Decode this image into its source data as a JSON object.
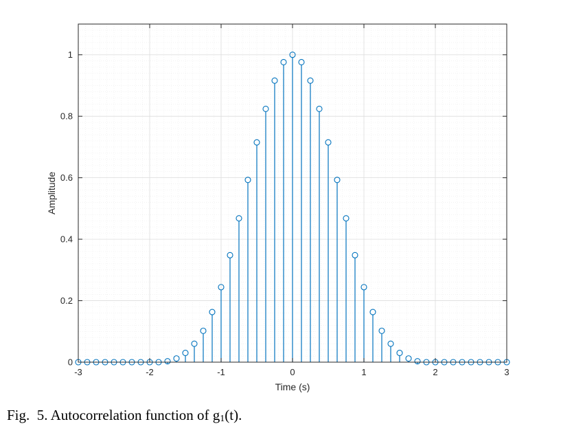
{
  "chart_data": {
    "type": "stem",
    "title": "",
    "xlabel": "Time (s)",
    "ylabel": "Amplitude",
    "xlim": [
      -3,
      3
    ],
    "ylim": [
      0,
      1.1
    ],
    "x_ticks": [
      -3,
      -2,
      -1,
      0,
      1,
      2,
      3
    ],
    "y_ticks": [
      0,
      0.2,
      0.4,
      0.6,
      0.8,
      1
    ],
    "x_tick_labels": [
      "-3",
      "-2",
      "-1",
      "0",
      "1",
      "2",
      "3"
    ],
    "y_tick_labels": [
      "0",
      "0.2",
      "0.4",
      "0.6",
      "0.8",
      "1"
    ],
    "grid": "major and minor",
    "marker": "circle",
    "series": [
      {
        "x": [
          -3,
          -2.875,
          -2.75,
          -2.625,
          -2.5,
          -2.375,
          -2.25,
          -2.125,
          -2,
          -1.875,
          -1.75,
          -1.625,
          -1.5,
          -1.375,
          -1.25,
          -1.125,
          -1,
          -0.875,
          -0.75,
          -0.625,
          -0.5,
          -0.375,
          -0.25,
          -0.125,
          0,
          0.125,
          0.25,
          0.375,
          0.5,
          0.625,
          0.75,
          0.875,
          1,
          1.125,
          1.25,
          1.375,
          1.5,
          1.625,
          1.75,
          1.875,
          2,
          2.125,
          2.25,
          2.375,
          2.5,
          2.625,
          2.75,
          2.875,
          3
        ],
        "y": [
          0,
          0,
          0,
          0,
          0,
          0,
          0,
          0,
          0,
          0,
          0.003,
          0.012,
          0.03,
          0.06,
          0.102,
          0.163,
          0.244,
          0.348,
          0.468,
          0.593,
          0.715,
          0.824,
          0.916,
          0.976,
          1,
          0.976,
          0.916,
          0.824,
          0.715,
          0.593,
          0.468,
          0.348,
          0.244,
          0.163,
          0.102,
          0.06,
          0.03,
          0.012,
          0.003,
          0,
          0,
          0,
          0,
          0,
          0,
          0,
          0,
          0,
          0
        ]
      }
    ]
  },
  "colors": {
    "series": "#0072BD",
    "axes": "#262626",
    "grid_major": "#dcdcdc",
    "grid_minor": "#ececec"
  },
  "caption": {
    "prefix": "Fig.  5. Autocorrelation function of g",
    "subscript": "1",
    "suffix": "(t)."
  }
}
